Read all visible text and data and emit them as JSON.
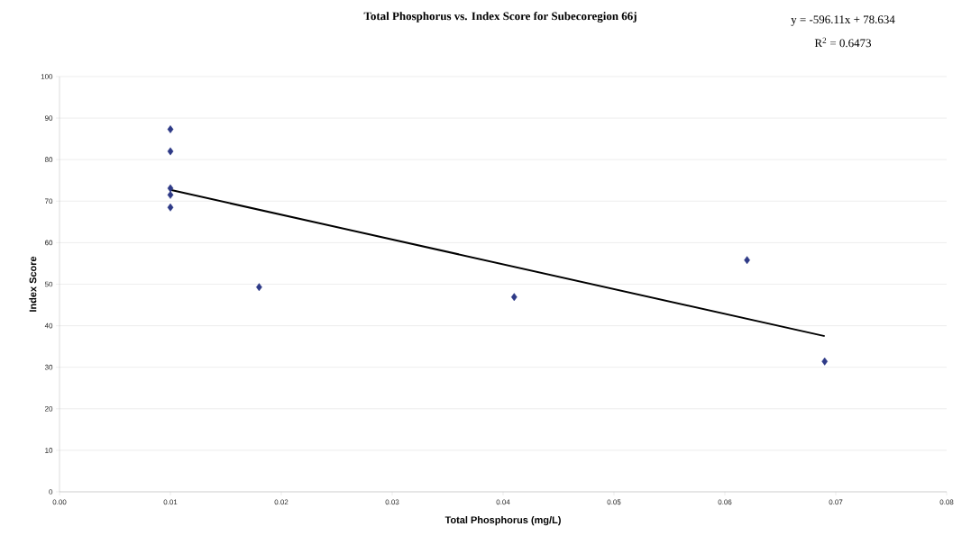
{
  "chart_data": {
    "type": "scatter",
    "title": "Total Phosphorus vs. Index Score for Subecoregion 66j",
    "xlabel": "Total Phosphorus (mg/L)",
    "ylabel": "Index Score",
    "annotations": [
      "y = -596.11x + 78.634",
      "R$^{2}$ = 0.6473"
    ],
    "series": [
      {
        "color": "#2e3a87",
        "marker": "diamond",
        "x": [
          0.01,
          0.01,
          0.01,
          0.01,
          0.01,
          0.018,
          0.041,
          0.062,
          0.069
        ],
        "values": [
          87.3,
          82.0,
          73.1,
          71.5,
          68.5,
          49.3,
          46.9,
          55.8,
          31.4
        ]
      },
      {
        "type": "line",
        "color": "#000000",
        "marker": "none",
        "x": [
          0.01,
          0.069
        ],
        "values": [
          72.7,
          37.5
        ]
      }
    ],
    "xlim": [
      0,
      0.08
    ],
    "xticks": [
      {
        "value": 0,
        "label": "0.00"
      },
      {
        "value": 0.01,
        "label": "0.01"
      },
      {
        "value": 0.02,
        "label": "0.02"
      },
      {
        "value": 0.03,
        "label": "0.03"
      },
      {
        "value": 0.04,
        "label": "0.04"
      },
      {
        "value": 0.05,
        "label": "0.05"
      },
      {
        "value": 0.06,
        "label": "0.06"
      },
      {
        "value": 0.07,
        "label": "0.07"
      },
      {
        "value": 0.08,
        "label": "0.08"
      }
    ],
    "ylim": [
      0,
      100
    ],
    "yticks": [
      0,
      10,
      20,
      30,
      40,
      50,
      60,
      70,
      80,
      90,
      100
    ],
    "grid": "y"
  }
}
